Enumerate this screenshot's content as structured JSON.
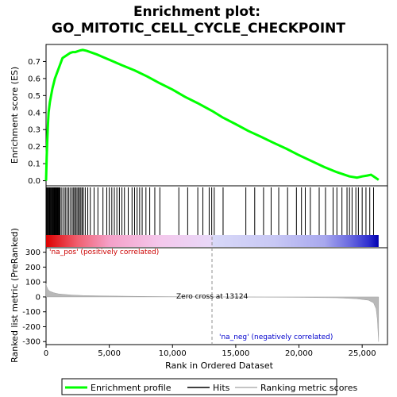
{
  "chart_data": {
    "type": "line",
    "title": [
      "Enrichment plot:",
      "GO_MITOTIC_CELL_CYCLE_CHECKPOINT"
    ],
    "xlabel": "Rank in Ordered Dataset",
    "xlim": [
      0,
      27000
    ],
    "x_ticks": [
      0,
      5000,
      10000,
      15000,
      20000,
      25000
    ],
    "x_tick_labels": [
      "0",
      "5,000",
      "10,000",
      "15,000",
      "20,000",
      "25,000"
    ],
    "es_panel": {
      "ylabel": "Enrichment score (ES)",
      "ylim": [
        -0.03,
        0.8
      ],
      "y_ticks": [
        0.0,
        0.1,
        0.2,
        0.3,
        0.4,
        0.5,
        0.6,
        0.7
      ],
      "y_tick_labels": [
        "0.0",
        "0.1",
        "0.2",
        "0.3",
        "0.4",
        "0.5",
        "0.6",
        "0.7"
      ],
      "series": {
        "name": "Enrichment profile",
        "color": "#00ff00",
        "points": [
          [
            0,
            0.0
          ],
          [
            50,
            0.14
          ],
          [
            100,
            0.24
          ],
          [
            150,
            0.33
          ],
          [
            200,
            0.4
          ],
          [
            300,
            0.46
          ],
          [
            400,
            0.5
          ],
          [
            500,
            0.54
          ],
          [
            600,
            0.57
          ],
          [
            700,
            0.6
          ],
          [
            800,
            0.62
          ],
          [
            900,
            0.64
          ],
          [
            1000,
            0.66
          ],
          [
            1100,
            0.68
          ],
          [
            1200,
            0.7
          ],
          [
            1300,
            0.72
          ],
          [
            1500,
            0.73
          ],
          [
            1700,
            0.74
          ],
          [
            1900,
            0.75
          ],
          [
            2100,
            0.755
          ],
          [
            2300,
            0.755
          ],
          [
            2500,
            0.76
          ],
          [
            2700,
            0.765
          ],
          [
            2900,
            0.768
          ],
          [
            3200,
            0.763
          ],
          [
            4000,
            0.742
          ],
          [
            5000,
            0.71
          ],
          [
            6000,
            0.678
          ],
          [
            7000,
            0.648
          ],
          [
            8000,
            0.612
          ],
          [
            9000,
            0.572
          ],
          [
            10000,
            0.535
          ],
          [
            11000,
            0.492
          ],
          [
            12000,
            0.455
          ],
          [
            13124,
            0.41
          ],
          [
            14000,
            0.37
          ],
          [
            15000,
            0.332
          ],
          [
            16000,
            0.292
          ],
          [
            17000,
            0.258
          ],
          [
            18000,
            0.222
          ],
          [
            19000,
            0.188
          ],
          [
            20000,
            0.15
          ],
          [
            21000,
            0.115
          ],
          [
            22000,
            0.08
          ],
          [
            23000,
            0.05
          ],
          [
            24000,
            0.025
          ],
          [
            24600,
            0.018
          ],
          [
            25000,
            0.025
          ],
          [
            25400,
            0.03
          ],
          [
            25700,
            0.035
          ],
          [
            26000,
            0.02
          ],
          [
            26300,
            0.005
          ]
        ]
      }
    },
    "hits_panel": {
      "name": "Hits",
      "color": "#000000",
      "ranks": [
        30,
        90,
        150,
        200,
        260,
        310,
        370,
        420,
        480,
        520,
        560,
        610,
        660,
        700,
        740,
        790,
        830,
        880,
        920,
        960,
        1010,
        1060,
        1120,
        1250,
        1400,
        1520,
        1650,
        1780,
        1900,
        2050,
        2150,
        2250,
        2350,
        2450,
        2550,
        2650,
        2750,
        2850,
        2950,
        3100,
        3300,
        3500,
        3800,
        4100,
        4500,
        4800,
        5000,
        5200,
        5400,
        5600,
        5800,
        6000,
        6200,
        6500,
        6800,
        7000,
        7200,
        7400,
        7600,
        7900,
        8200,
        8600,
        9000,
        10500,
        11200,
        12000,
        12400,
        12900,
        13100,
        13300,
        14000,
        15800,
        16500,
        17200,
        17800,
        18400,
        19100,
        19800,
        20200,
        20500,
        20900,
        21600,
        22100,
        22700,
        23000,
        23400,
        23800,
        24000,
        24200,
        24500,
        24700,
        25000,
        25300,
        25600,
        25900
      ]
    },
    "color_bar": {
      "stops": [
        [
          0,
          "#dd0000"
        ],
        [
          2500,
          "#f06070"
        ],
        [
          5000,
          "#f4a0c8"
        ],
        [
          9000,
          "#f4c8ec"
        ],
        [
          13124,
          "#e8d8f8"
        ],
        [
          13200,
          "#d8d8f8"
        ],
        [
          18000,
          "#c8c8f4"
        ],
        [
          22000,
          "#a8a8ee"
        ],
        [
          24000,
          "#6a6ae0"
        ],
        [
          25500,
          "#3030d0"
        ],
        [
          26300,
          "#0000b0"
        ]
      ]
    },
    "metric_panel": {
      "ylabel": "Ranked list metric (PreRanked)",
      "ylim": [
        -320,
        330
      ],
      "y_ticks": [
        300,
        200,
        100,
        0,
        -100,
        -200,
        -300
      ],
      "y_tick_labels": [
        "300",
        "200",
        "100",
        "0",
        "-100",
        "-200",
        "-300"
      ],
      "series": {
        "name": "Ranking metric scores",
        "color": "#b0b0b0",
        "points": [
          [
            0,
            90
          ],
          [
            50,
            70
          ],
          [
            150,
            50
          ],
          [
            300,
            38
          ],
          [
            600,
            28
          ],
          [
            1000,
            20
          ],
          [
            2000,
            13
          ],
          [
            3000,
            9
          ],
          [
            5000,
            6
          ],
          [
            8000,
            3
          ],
          [
            11000,
            1
          ],
          [
            13124,
            0
          ],
          [
            16000,
            -1
          ],
          [
            20000,
            -3
          ],
          [
            23000,
            -6
          ],
          [
            24500,
            -12
          ],
          [
            25500,
            -22
          ],
          [
            25900,
            -40
          ],
          [
            26100,
            -80
          ],
          [
            26200,
            -150
          ],
          [
            26300,
            -300
          ]
        ]
      },
      "pos_label": "'na_pos' (positively correlated)",
      "neg_label": "'na_neg' (negatively correlated)",
      "zero_cross_label": "Zero cross at 13124",
      "zero_cross": 13124,
      "pos_color": "#cc0000",
      "neg_color": "#0000cc"
    },
    "legend": {
      "placement": "bottom",
      "entries": [
        {
          "label": "Enrichment profile",
          "color": "#00ff00",
          "kind": "thick-line"
        },
        {
          "label": "Hits",
          "color": "#000000",
          "kind": "line"
        },
        {
          "label": "Ranking metric scores",
          "color": "#b0b0b0",
          "kind": "line"
        }
      ]
    },
    "grid": false
  }
}
